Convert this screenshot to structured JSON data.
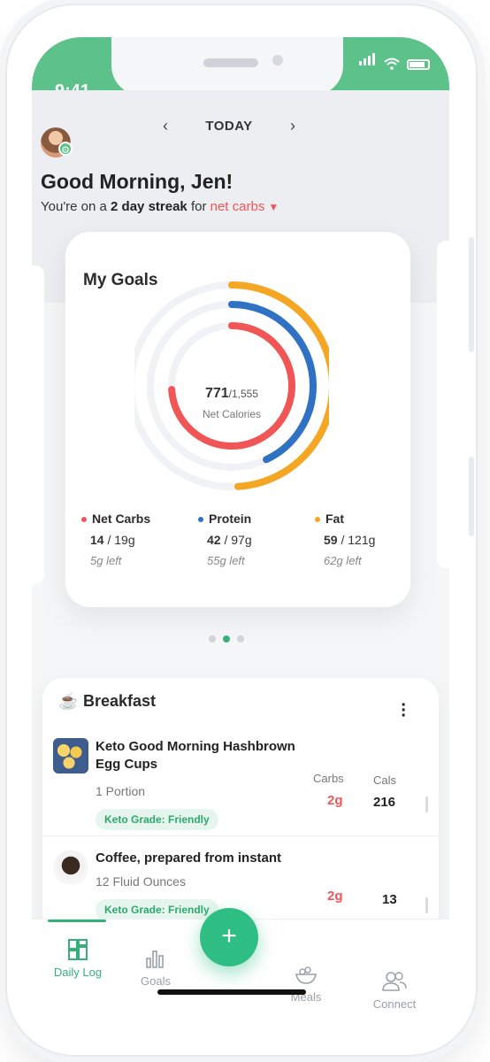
{
  "status": {
    "time": "9:41"
  },
  "header": {
    "date_label": "TODAY",
    "prev_arrow": "‹",
    "next_arrow": "›",
    "greeting": "Good Morning, Jen!",
    "streak_prefix": "You're on a ",
    "streak_bold": "2 day streak",
    "streak_mid": " for ",
    "streak_metric": "net carbs"
  },
  "goals": {
    "title": "My Goals",
    "consumed": "771",
    "goal": "/1,555",
    "center_label": "Net Calories",
    "macros": [
      {
        "name": "Net Carbs",
        "value": "14",
        "goal": " / 19g",
        "left": "5g left",
        "color": "#f05656",
        "fraction": 0.74
      },
      {
        "name": "Protein",
        "value": "42",
        "goal": " / 97g",
        "left": "55g left",
        "color": "#2f72c4",
        "fraction": 0.43
      },
      {
        "name": "Fat",
        "value": "59",
        "goal": " / 121g",
        "left": "62g left",
        "color": "#f5a623",
        "fraction": 0.49
      }
    ],
    "pager_active_index": 1,
    "pager_count": 3
  },
  "meal": {
    "title": "Breakfast",
    "icon": "coffee-cup-icon",
    "columns": {
      "carbs": "Carbs",
      "cals": "Cals"
    },
    "items": [
      {
        "name": "Keto Good Morning Hashbrown Egg Cups",
        "qty": "1 Portion",
        "grade": "Keto Grade: Friendly",
        "carbs": "2g",
        "cals": "216"
      },
      {
        "name": "Coffee, prepared from instant",
        "qty": "12 Fluid Ounces",
        "grade": "Keto Grade: Friendly",
        "carbs": "2g",
        "cals": "13"
      }
    ]
  },
  "tabs": [
    {
      "label": "Daily Log",
      "icon": "daily-log-icon",
      "active": true
    },
    {
      "label": "Goals",
      "icon": "bar-chart-icon",
      "active": false
    },
    {
      "label": "Meals",
      "icon": "meals-bowl-icon",
      "active": false
    },
    {
      "label": "Connect",
      "icon": "people-icon",
      "active": false
    }
  ],
  "fab": {
    "label": "+"
  },
  "colors": {
    "brand": "#36b07a",
    "carbs": "#f05656",
    "protein": "#2f72c4",
    "fat": "#f5a623"
  }
}
